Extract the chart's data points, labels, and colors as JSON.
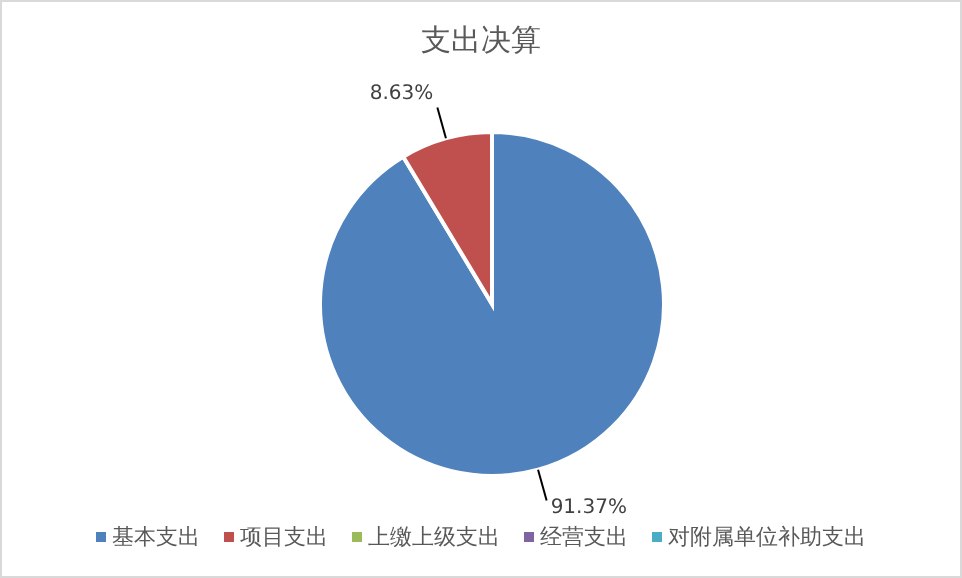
{
  "chart_data": {
    "type": "pie",
    "title": "支出决算",
    "categories": [
      "基本支出",
      "项目支出",
      "上缴上级支出",
      "经营支出",
      "对附属单位补助支出"
    ],
    "values": [
      91.37,
      8.63,
      0,
      0,
      0
    ],
    "colors": [
      "#4f81bd",
      "#c0504d",
      "#9bbb59",
      "#8064a2",
      "#4bacc6"
    ],
    "value_labels": [
      "91.37%",
      "8.63%",
      null,
      null,
      null
    ],
    "legend": "bottom"
  }
}
